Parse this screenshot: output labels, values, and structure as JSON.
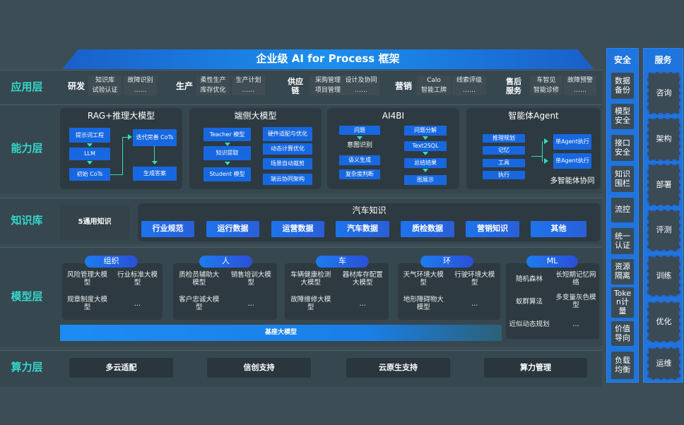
{
  "title": "企业级 AI for Process 框架",
  "layers": {
    "app": "应用层",
    "capability": "能力层",
    "knowledge": "知识库",
    "model": "模型层",
    "compute": "算力层"
  },
  "app": {
    "groups": [
      {
        "name": "研发",
        "items": [
          "知识库",
          "故障识别",
          "试验认证",
          "……"
        ]
      },
      {
        "name": "生产",
        "items": [
          "柔性生产",
          "生产计划",
          "库存优化",
          "……"
        ]
      },
      {
        "name": "供应链",
        "items": [
          "采购管理",
          "设计及协同",
          "项目管理",
          "……"
        ]
      },
      {
        "name": "营销",
        "items": [
          "Calo",
          "线索评级",
          "智能工牌",
          "……"
        ]
      },
      {
        "name": "售后服务",
        "items": [
          "车智见",
          "故障预警",
          "智能诊修",
          "……"
        ]
      }
    ]
  },
  "capability": {
    "cards": [
      {
        "title": "RAG+推理大模型",
        "items": [
          "提示词工程",
          "LLM",
          "初始 CoTs",
          "迭代完善 CoTs",
          "生成答案"
        ]
      },
      {
        "title": "端侧大模型",
        "items": [
          "Teacher 模型",
          "知识提取",
          "Student 模型",
          "硬件适配与优化",
          "动态计算优化",
          "场景自动裁剪",
          "端云协同架构"
        ]
      },
      {
        "title": "AI4BI",
        "items": [
          "问题",
          "意图识别",
          "语义生成",
          "复杂度判断",
          "问题分解",
          "Text2SQL",
          "总结结果",
          "图展示"
        ]
      },
      {
        "title": "智能体Agent",
        "items": [
          "推理规划",
          "记忆",
          "工具",
          "执行",
          "单Agent执行",
          "单Agent执行",
          "多智能体协同"
        ]
      }
    ]
  },
  "knowledge": {
    "general": "5通用知识",
    "title": "汽车知识",
    "items": [
      "行业规范",
      "运行数据",
      "运营数据",
      "汽车数据",
      "质检数据",
      "营销知识",
      "其他"
    ]
  },
  "model": {
    "groups": [
      {
        "tab": "组织",
        "items": [
          "风险管理大模型",
          "行业标准大模型",
          "规章制度大模型",
          "…"
        ]
      },
      {
        "tab": "人",
        "items": [
          "质检员辅助大模型",
          "销售培训大模型",
          "客户忠诚大模型",
          "…"
        ]
      },
      {
        "tab": "车",
        "items": [
          "车辆健康检测大模型",
          "器材库存配置大模型",
          "故障维修大模型",
          "…"
        ]
      },
      {
        "tab": "环",
        "items": [
          "天气环境大模型",
          "行驶环境大模型",
          "地形障碍物大模型",
          "…"
        ]
      },
      {
        "tab": "ML",
        "items": [
          "随机森林",
          "长短期记忆网络",
          "蚁群算法",
          "多变量灰色模型",
          "近似动态规划",
          "…"
        ]
      }
    ],
    "base": "基座大模型"
  },
  "compute": {
    "items": [
      "多云适配",
      "信创支持",
      "云原生支持",
      "算力管理"
    ]
  },
  "security": {
    "title": "安全",
    "items": [
      "数据备份",
      "模型安全",
      "接口安全",
      "知识围栏",
      "流控",
      "统一认证",
      "资源隔离",
      "Token计量",
      "价值导向",
      "负载均衡"
    ]
  },
  "services": {
    "title": "服务",
    "items": [
      "咨询",
      "架构",
      "部署",
      "评测",
      "训练",
      "优化",
      "运维"
    ]
  },
  "colors": {
    "background": "#3c4d55",
    "accent": "#1768e0",
    "layer_label": "#35d6c9",
    "arrow": "#2fe0b8"
  }
}
